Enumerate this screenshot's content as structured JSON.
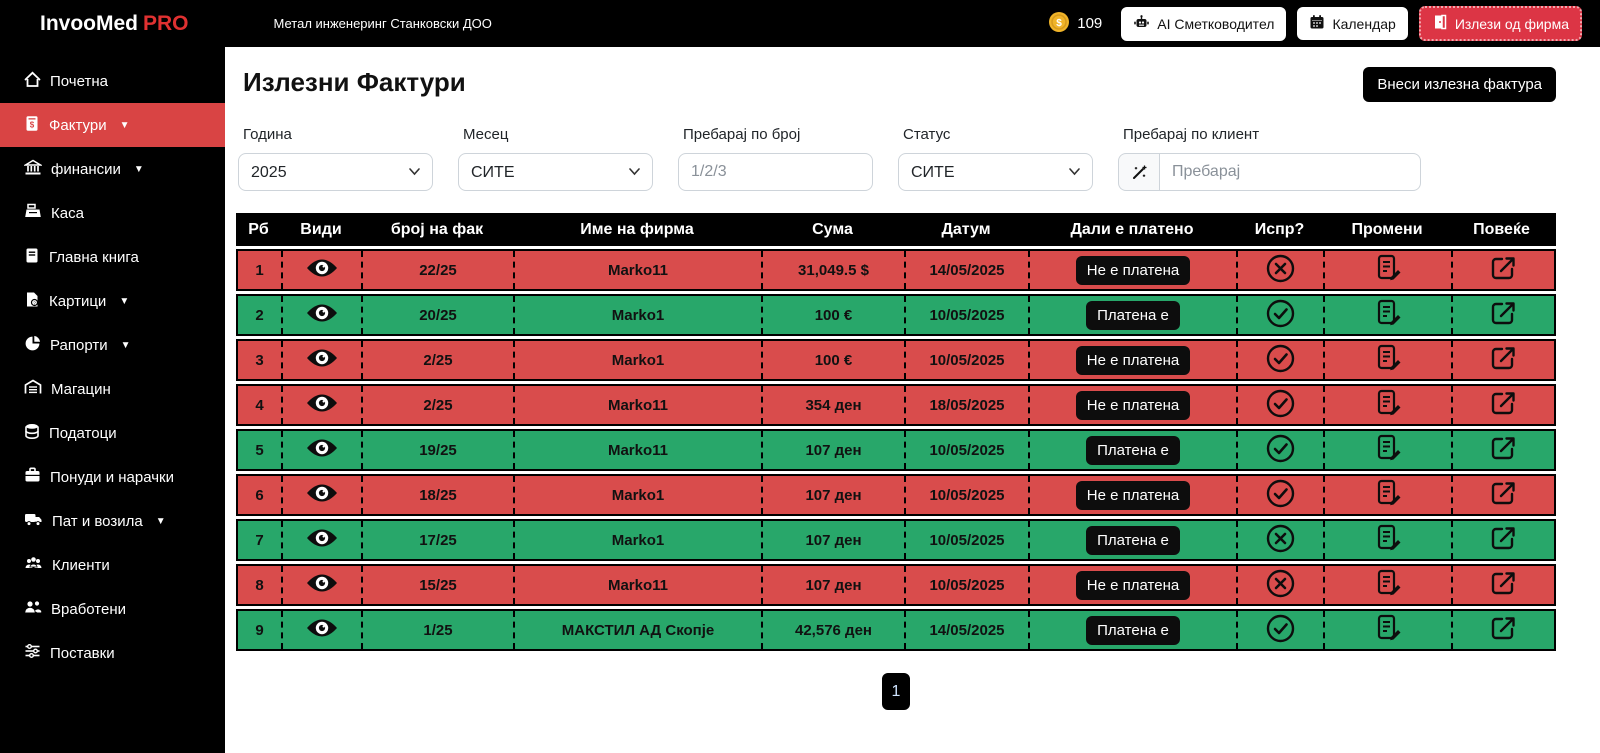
{
  "topbar": {
    "brand": "InvooMed",
    "brand_suffix": "PRO",
    "company": "Метал инженеринг Станковски ДОО",
    "coins": "109",
    "ai_button": "AI Сметководител",
    "calendar_button": "Календар",
    "logout_button": "Излези од фирма"
  },
  "sidebar": {
    "items": [
      {
        "label": "Почетна",
        "icon": "home-icon",
        "caret": false,
        "active": false
      },
      {
        "label": "Фактури",
        "icon": "invoice-icon",
        "caret": true,
        "active": true
      },
      {
        "label": "финансии",
        "icon": "bank-icon",
        "caret": true,
        "active": false
      },
      {
        "label": "Каса",
        "icon": "cash-register-icon",
        "caret": false,
        "active": false
      },
      {
        "label": "Главна книга",
        "icon": "ledger-icon",
        "caret": false,
        "active": false
      },
      {
        "label": "Картици",
        "icon": "cards-icon",
        "caret": true,
        "active": false
      },
      {
        "label": "Рапорти",
        "icon": "reports-icon",
        "caret": true,
        "active": false
      },
      {
        "label": "Магацин",
        "icon": "warehouse-icon",
        "caret": false,
        "active": false
      },
      {
        "label": "Податоци",
        "icon": "database-icon",
        "caret": false,
        "active": false
      },
      {
        "label": "Понуди и нарачки",
        "icon": "briefcase-icon",
        "caret": false,
        "active": false
      },
      {
        "label": "Пат и возила",
        "icon": "truck-icon",
        "caret": true,
        "active": false
      },
      {
        "label": "Клиенти",
        "icon": "clients-icon",
        "caret": false,
        "active": false
      },
      {
        "label": "Вработени",
        "icon": "employees-icon",
        "caret": false,
        "active": false
      },
      {
        "label": "Поставки",
        "icon": "settings-icon",
        "caret": false,
        "active": false
      }
    ]
  },
  "page": {
    "title": "Излезни Фактури",
    "add_button": "Внеси излезна фактура",
    "filters": {
      "year_label": "Година",
      "year_value": "2025",
      "month_label": "Месец",
      "month_value": "СИТЕ",
      "number_label": "Пребарај по број",
      "number_placeholder": "1/2/3",
      "status_label": "Статус",
      "status_value": "СИТЕ",
      "client_label": "Пребарај по клиент",
      "client_placeholder": "Пребарај",
      "wand_icon": "magic-wand-icon"
    },
    "table": {
      "headers": [
        "Рб",
        "Види",
        "број на фак",
        "Име на фирма",
        "Сума",
        "Датум",
        "Дали е платено",
        "Испр?",
        "Промени",
        "Повеќе"
      ],
      "rows": [
        {
          "num": "1",
          "invoice_no": "22/25",
          "company": "Marko11",
          "amount": "31,049.5 $",
          "date": "14/05/2025",
          "paid_label": "Не е платена",
          "paid": false,
          "sent": false
        },
        {
          "num": "2",
          "invoice_no": "20/25",
          "company": "Marko1",
          "amount": "100 €",
          "date": "10/05/2025",
          "paid_label": "Платена е",
          "paid": true,
          "sent": true
        },
        {
          "num": "3",
          "invoice_no": "2/25",
          "company": "Marko1",
          "amount": "100 €",
          "date": "10/05/2025",
          "paid_label": "Не е платена",
          "paid": false,
          "sent": true
        },
        {
          "num": "4",
          "invoice_no": "2/25",
          "company": "Marko11",
          "amount": "354 ден",
          "date": "18/05/2025",
          "paid_label": "Не е платена",
          "paid": false,
          "sent": true
        },
        {
          "num": "5",
          "invoice_no": "19/25",
          "company": "Marko11",
          "amount": "107 ден",
          "date": "10/05/2025",
          "paid_label": "Платена е",
          "paid": true,
          "sent": true
        },
        {
          "num": "6",
          "invoice_no": "18/25",
          "company": "Marko1",
          "amount": "107 ден",
          "date": "10/05/2025",
          "paid_label": "Не е платена",
          "paid": false,
          "sent": true
        },
        {
          "num": "7",
          "invoice_no": "17/25",
          "company": "Marko1",
          "amount": "107 ден",
          "date": "10/05/2025",
          "paid_label": "Платена е",
          "paid": true,
          "sent": false
        },
        {
          "num": "8",
          "invoice_no": "15/25",
          "company": "Marko11",
          "amount": "107 ден",
          "date": "10/05/2025",
          "paid_label": "Не е платена",
          "paid": false,
          "sent": false
        },
        {
          "num": "9",
          "invoice_no": "1/25",
          "company": "МАКСТИЛ АД Скопје",
          "amount": "42,576 ден",
          "date": "14/05/2025",
          "paid_label": "Платена е",
          "paid": true,
          "sent": true
        }
      ]
    },
    "pagination": {
      "current_page": "1"
    }
  },
  "colors": {
    "row_unpaid_red": "#d94c4c",
    "row_paid_green": "#28a76a",
    "sidebar_active_red": "#d94444",
    "logout_red": "#dc3545",
    "coin_gold": "#f0b429",
    "bar_black": "#000000"
  }
}
